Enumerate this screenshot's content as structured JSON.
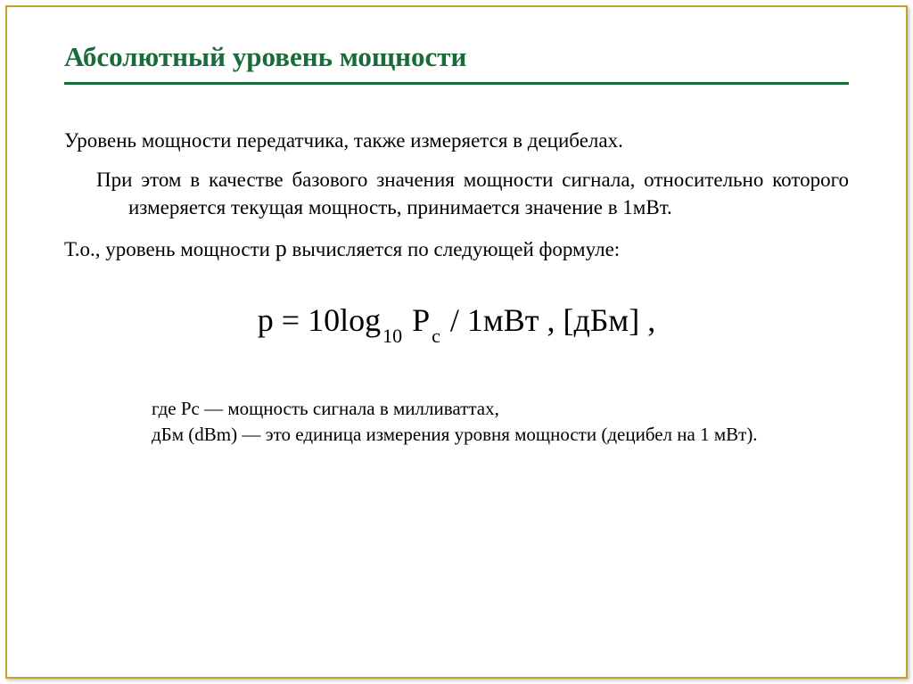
{
  "title": "Абсолютный уровень мощности",
  "para1_line1": "Уровень мощности передатчика, также измеряется в децибелах.",
  "para2": "При этом в качестве базового значения мощности сигнала, относительно которого измеряется текущая мощность, принимается значение в 1мВт.",
  "para3_pre": "Т.о., уровень мощности ",
  "para3_var": "p",
  "para3_post": " вычисляется по следующей формуле:",
  "formula": {
    "p": "p",
    "eq": " = ",
    "coef": "10",
    "log": "log",
    "logbase": "10",
    "space": " ",
    "P": "P",
    "Psub": "c",
    "slash": " / ",
    "unit": "1мВт",
    "comma": " ,     [",
    "dbm": "дБм",
    "close": "] ,"
  },
  "desc1": "где Pc — мощность сигнала в милливаттах,",
  "desc2": "       дБм (dBm) — это единица измерения уровня мощности (децибел на 1 мВт).",
  "colors": {
    "title": "#1a6b3a",
    "frame": "#c8a030",
    "text": "#000000",
    "background": "#ffffff"
  },
  "typography": {
    "title_fontsize": 31,
    "body_fontsize": 23,
    "formula_fontsize": 36,
    "desc_fontsize": 21,
    "font_family": "Times New Roman"
  }
}
